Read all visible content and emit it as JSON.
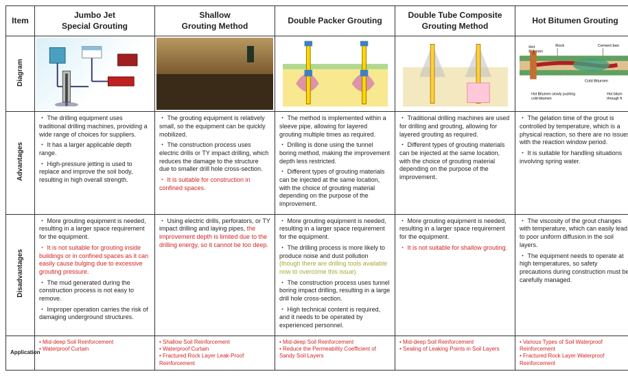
{
  "row_headers": {
    "item": "Item",
    "diagram": "Diagram",
    "advantages": "Advantages",
    "disadvantages": "Disadvantages",
    "application": "Application"
  },
  "columns": [
    {
      "title": "Jumbo Jet\nSpecial Grouting",
      "advantages": [
        {
          "text": "The drilling equipment uses traditional drilling machines, providing a wide range of choices for suppliers."
        },
        {
          "text": "It has a larger applicable depth range."
        },
        {
          "text": "High-pressure jetting is used to replace and improve the soil body, resulting in high overall strength."
        }
      ],
      "disadvantages": [
        {
          "text": "More grouting equipment is needed, resulting in a larger space requirement for the equipment."
        },
        {
          "text": "It is not suitable for grouting inside buildings or in confined spaces as it can easily cause bulging due to excessive grouting pressure.",
          "color": "red"
        },
        {
          "text": "The mud generated during the construction process is not easy to remove."
        },
        {
          "text": "Improper operation carries the risk of damaging underground structures."
        }
      ],
      "applications": [
        "Mid-deep Soil Reinforcement",
        "Waterproof Curtain"
      ]
    },
    {
      "title": "Shallow\nGrouting Method",
      "advantages": [
        {
          "text": "The grouting equipment is relatively small, so the equipment can be quickly mobilized."
        },
        {
          "text": "The construction process uses electric drills or TY impact drilling, which reduces the damage to the structure due to smaller drill hole cross-section."
        },
        {
          "text": "It is suitable for construction in confined spaces.",
          "color": "red"
        }
      ],
      "disadvantages": [
        {
          "pre": "Using electric drills, perforators, or TY impact drilling and laying pipes, ",
          "mid": "the improvement depth is limited due to the drilling energy, so it cannot be too deep.",
          "mid_color": "red"
        }
      ],
      "applications": [
        "Shallow Soil Reinforcement",
        "Waterproof Curtain",
        "Fractured Rock Layer Leak-Proof Reinforcement"
      ]
    },
    {
      "title": "Double Packer Grouting",
      "advantages": [
        {
          "text": "The method is implemented within a sleeve pipe, allowing for layered grouting multiple times as required."
        },
        {
          "text": "Drilling is done using the tunnel boring method, making the improvement depth less restricted."
        },
        {
          "text": "Different types of grouting materials can be injected at the same location, with the choice of grouting material depending on the purpose of the improvement."
        }
      ],
      "disadvantages": [
        {
          "text": "More grouting equipment is needed, resulting in a larger space requirement for the equipment."
        },
        {
          "pre": "The drilling process is more likely to produce noise and dust pollution ",
          "mid": "(though there are drilling tools available now to overcome this issue).",
          "mid_color": "olive"
        },
        {
          "text": "The construction process uses tunnel boring impact drilling, resulting in a large drill hole cross-section."
        },
        {
          "text": "High technical content is required, and it needs to be operated by experienced personnel."
        }
      ],
      "applications": [
        "Mid-deep Soil Reinforcement",
        "Reduce the Permeability Coefficient of Sandy Soil Layers"
      ]
    },
    {
      "title": "Double Tube Composite\nGrouting Method",
      "advantages": [
        {
          "text": "Traditional drilling machines are used for drilling and grouting, allowing for layered grouting as required."
        },
        {
          "text": "Different types of grouting materials can be injected at the same location, with the choice of grouting material depending on the purpose of the improvement."
        }
      ],
      "disadvantages": [
        {
          "text": "More grouting equipment is needed, resulting in a larger space requirement for the equipment."
        },
        {
          "text": "It is not suitable for shallow grouting.",
          "color": "red"
        }
      ],
      "applications": [
        "Mid-deep Soil Reinforcement",
        "Sealing of Leaking Points in Soil Layers"
      ]
    },
    {
      "title": "Hot Bitumen Grouting",
      "advantages": [
        {
          "text": "The gelation time of the grout is controlled by temperature, which is a physical reaction, so there are no issues with the reaction window period."
        },
        {
          "text": "It is suitable for handling situations involving spring water."
        }
      ],
      "disadvantages": [
        {
          "text": "The viscosity of the grout changes with temperature, which can easily lead to poor uniform diffusion in the soil layers."
        },
        {
          "text": "The equipment needs to operate at high temperatures, so safety precautions during construction must be carefully managed."
        }
      ],
      "applications": [
        "Various Types of Soil Waterproof Reinforcement",
        "Fractured Rock Layer Waterproof Reinforcement"
      ]
    }
  ],
  "bitumen_labels": {
    "hot": "Hot\nBitumen",
    "rock": "Rock",
    "cement": "Cement ban",
    "cold": "Cold Bitumen",
    "slowly": "Hot Bitumen slowly pushing\ncold bitumen",
    "through": "Hot bitum\nthrough fi"
  }
}
